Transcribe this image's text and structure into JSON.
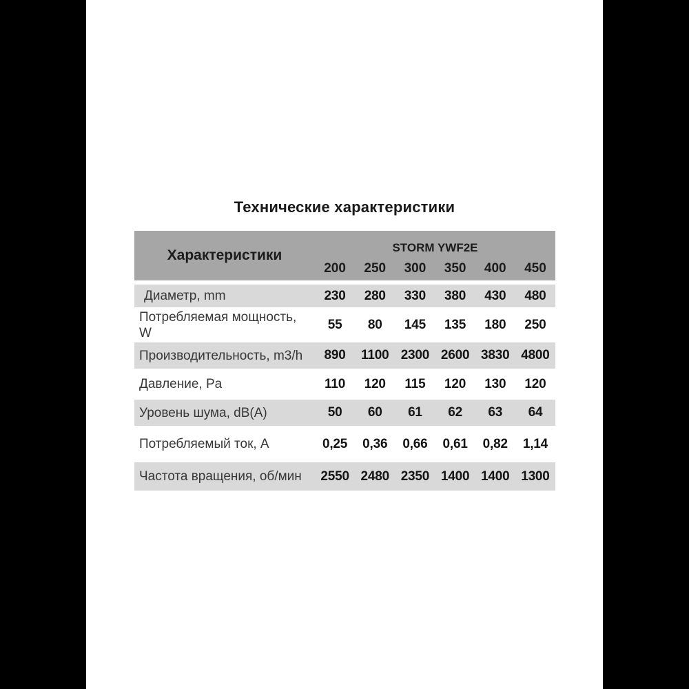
{
  "page": {
    "title": "Технические характеристики"
  },
  "table": {
    "header": {
      "label_column": "Характеристики",
      "series_name": "STORM YWF2E",
      "models": [
        "200",
        "250",
        "300",
        "350",
        "400",
        "450"
      ]
    },
    "rows": [
      {
        "label": "Диаметр, mm",
        "values": [
          "230",
          "280",
          "330",
          "380",
          "430",
          "480"
        ]
      },
      {
        "label": "Потребляемая мощность,\nW",
        "values": [
          "55",
          "80",
          "145",
          "135",
          "180",
          "250"
        ]
      },
      {
        "label": "Производительность, m3/h",
        "values": [
          "890",
          "1100",
          "2300",
          "2600",
          "3830",
          "4800"
        ]
      },
      {
        "label": "Давление, Pa",
        "values": [
          "110",
          "120",
          "115",
          "120",
          "130",
          "120"
        ]
      },
      {
        "label": "Уровень шума, dB(A)",
        "values": [
          "50",
          "60",
          "61",
          "62",
          "63",
          "64"
        ]
      },
      {
        "label": "Потребляемый ток, A",
        "values": [
          "0,25",
          "0,36",
          "0,66",
          "0,61",
          "0,82",
          "1,14"
        ]
      },
      {
        "label": "Частота вращения, об/мин",
        "values": [
          "2550",
          "2480",
          "2350",
          "1400",
          "1400",
          "1300"
        ]
      }
    ],
    "colors": {
      "header_bg": "#a6a6a6",
      "row_alt_bg": "#d9d9d9",
      "row_bg": "#ffffff",
      "side_bars": "#000000",
      "text": "#1c1c1c"
    }
  }
}
